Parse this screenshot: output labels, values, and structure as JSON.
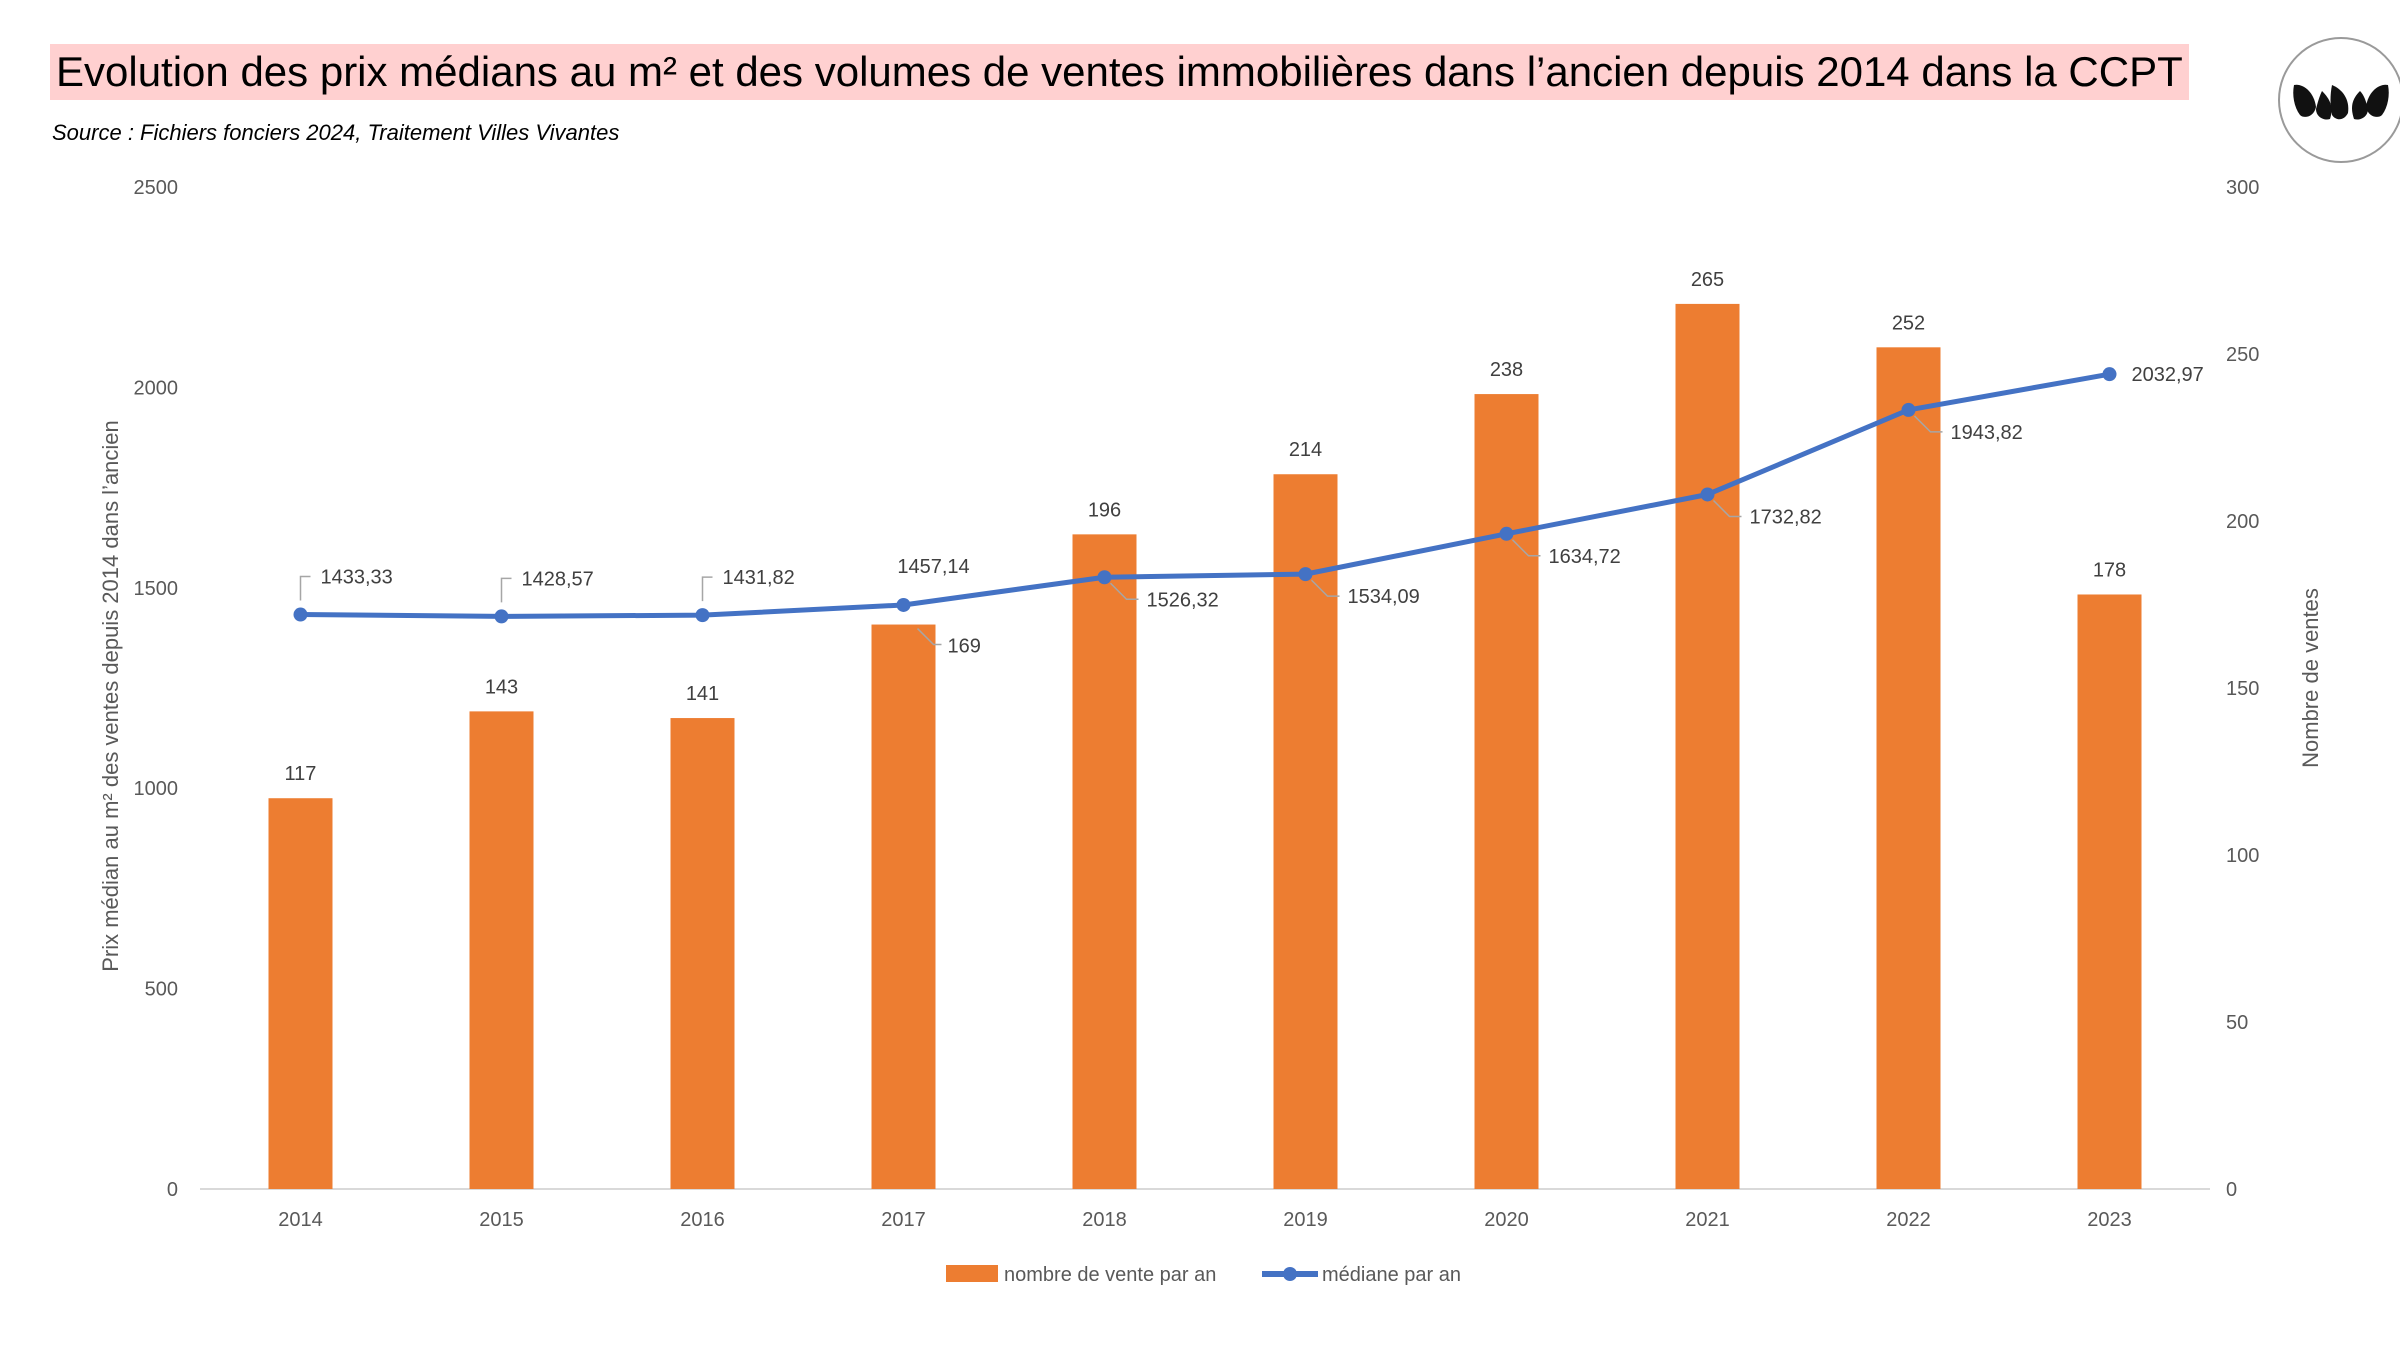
{
  "header": {
    "title": "Evolution des prix médians au m² et des volumes de ventes immobilières dans l’ancien depuis 2014 dans la CCPT",
    "source": "Source : Fichiers fonciers 2024, Traitement Villes Vivantes",
    "logo_icon": "leaf-logo-icon"
  },
  "colors": {
    "bar": "#ED7D31",
    "line": "#4472C4",
    "title_highlight": "#FFD0D0"
  },
  "chart_data": {
    "type": "bar",
    "categories": [
      "2014",
      "2015",
      "2016",
      "2017",
      "2018",
      "2019",
      "2020",
      "2021",
      "2022",
      "2023"
    ],
    "series": [
      {
        "name": "nombre de vente par an",
        "chart": "bar",
        "axis": "right",
        "values": [
          117,
          143,
          141,
          169,
          196,
          214,
          238,
          265,
          252,
          178
        ],
        "labels": [
          "117",
          "143",
          "141",
          "169",
          "196",
          "214",
          "238",
          "265",
          "252",
          "178"
        ]
      },
      {
        "name": "médiane par an",
        "chart": "line",
        "axis": "left",
        "values": [
          1433.33,
          1428.57,
          1431.82,
          1457.14,
          1526.32,
          1534.09,
          1634.72,
          1732.82,
          1943.82,
          2032.97
        ],
        "labels": [
          "1433,33",
          "1428,57",
          "1431,82",
          "1457,14",
          "1526,32",
          "1534,09",
          "1634,72",
          "1732,82",
          "1943,82",
          "2032,97"
        ]
      }
    ],
    "ylabel": "Prix médian au m² des ventes depuis 2014 dans l’ancien",
    "y2label": "Nombre de ventes",
    "ylim": [
      0,
      2500
    ],
    "y2lim": [
      0,
      300
    ],
    "yticks": [
      "0",
      "500",
      "1000",
      "1500",
      "2000",
      "2500"
    ],
    "y2ticks": [
      "0",
      "50",
      "100",
      "150",
      "200",
      "250",
      "300"
    ],
    "grid": false,
    "legend_position": "bottom"
  }
}
